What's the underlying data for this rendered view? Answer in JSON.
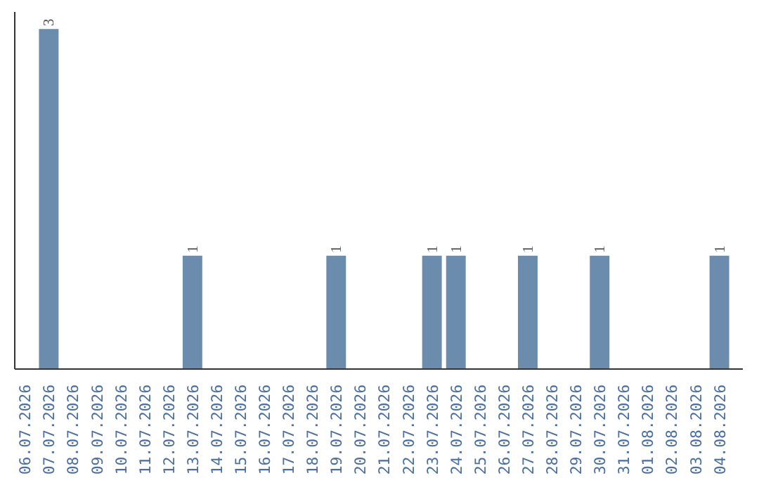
{
  "chart_data": {
    "type": "bar",
    "categories": [
      "06.07.2026",
      "07.07.2026",
      "08.07.2026",
      "09.07.2026",
      "10.07.2026",
      "11.07.2026",
      "12.07.2026",
      "13.07.2026",
      "14.07.2026",
      "15.07.2026",
      "16.07.2026",
      "17.07.2026",
      "18.07.2026",
      "19.07.2026",
      "20.07.2026",
      "21.07.2026",
      "22.07.2026",
      "23.07.2026",
      "24.07.2026",
      "25.07.2026",
      "26.07.2026",
      "27.07.2026",
      "28.07.2026",
      "29.07.2026",
      "30.07.2026",
      "31.07.2026",
      "01.08.2026",
      "02.08.2026",
      "03.08.2026",
      "04.08.2026"
    ],
    "values": [
      0,
      3,
      0,
      0,
      0,
      0,
      0,
      1,
      0,
      0,
      0,
      0,
      0,
      1,
      0,
      0,
      0,
      1,
      1,
      0,
      0,
      1,
      0,
      0,
      1,
      0,
      0,
      0,
      0,
      1
    ],
    "value_labels": [
      null,
      "3",
      null,
      null,
      null,
      null,
      null,
      "1",
      null,
      null,
      null,
      null,
      null,
      "1",
      null,
      null,
      null,
      "1",
      "1",
      null,
      null,
      "1",
      null,
      null,
      "1",
      null,
      null,
      null,
      null,
      "1"
    ],
    "color": "#6b8cac",
    "grid": false,
    "tick_labels": "x"
  }
}
